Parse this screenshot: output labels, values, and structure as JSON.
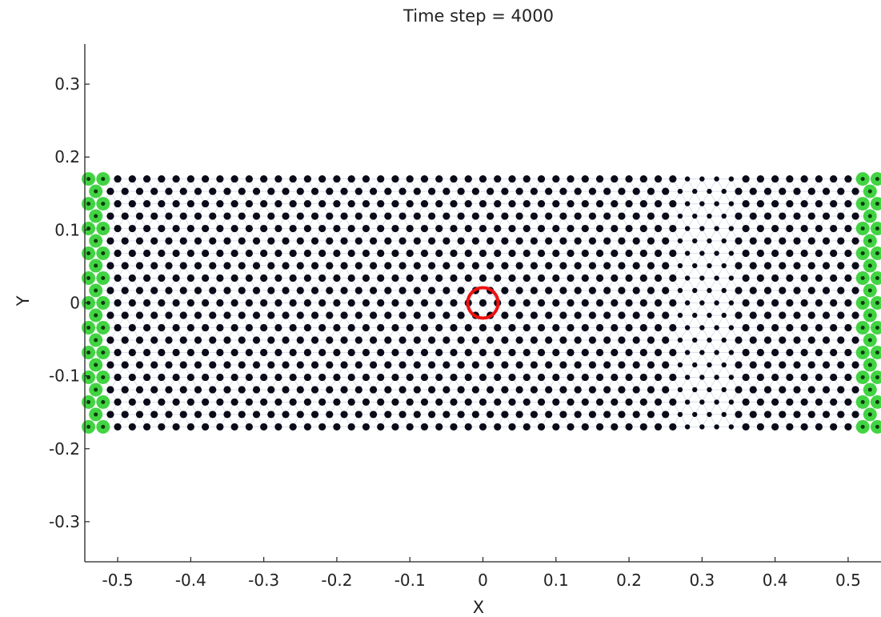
{
  "chart_data": {
    "type": "scatter",
    "title": "Time step = 4000",
    "xlabel": "X",
    "ylabel": "Y",
    "xlim": [
      -0.545,
      0.545
    ],
    "ylim": [
      -0.355,
      0.355
    ],
    "xticks": [
      -0.5,
      -0.4,
      -0.3,
      -0.2,
      -0.1,
      0,
      0.1,
      0.2,
      0.3,
      0.4,
      0.5
    ],
    "xtick_labels": [
      "-0.5",
      "-0.4",
      "-0.3",
      "-0.2",
      "-0.1",
      "0",
      "0.1",
      "0.2",
      "0.3",
      "0.4",
      "0.5"
    ],
    "yticks": [
      0.3,
      0.2,
      0.1,
      0,
      -0.1,
      -0.2,
      -0.3
    ],
    "ytick_labels": [
      "0.3",
      "0.2",
      "0.1",
      "0",
      "-0.1",
      "-0.2",
      "-0.3"
    ],
    "grid": false,
    "lattice": {
      "x_min": -0.54,
      "x_max": 0.54,
      "y_min": -0.17,
      "y_max": 0.17,
      "row_spacing": 0.017,
      "column_spacing": 0.02
    },
    "series": [
      {
        "role": "interior-particles",
        "color": "#0a0a18",
        "region": "-0.52 < x < 0.52"
      },
      {
        "role": "boundary-particles",
        "color": "#22cc22",
        "region": "x <= -0.52 or x >= 0.52"
      },
      {
        "role": "bond-network",
        "color": "#b7c8de"
      },
      {
        "role": "highlighted-particle",
        "color": "#ee1111",
        "x": 0,
        "y": 0
      }
    ],
    "disturbed_region": {
      "x_min": 0.27,
      "x_max": 0.35
    }
  }
}
